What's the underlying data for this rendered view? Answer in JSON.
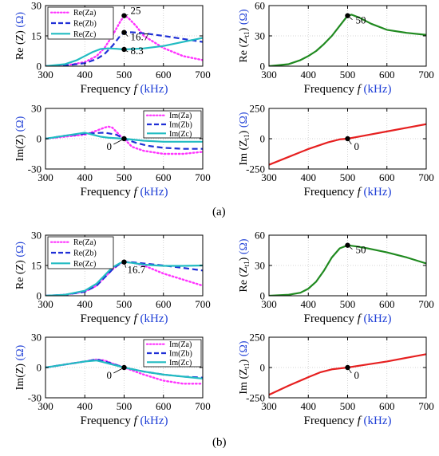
{
  "colors": {
    "Za": "#ff33ff",
    "Zb": "#1f2fd6",
    "Zc": "#22bcc2",
    "green": "#208a20",
    "red": "#e62020",
    "blue_text": "#1f3fd6",
    "axis": "#000000"
  },
  "panel_labels": [
    "(a)",
    "(b)"
  ],
  "text": {
    "x_axis_word": "Frequency",
    "x_axis_var": "f",
    "x_axis_unit": "(kHz)",
    "unit_ohm": "(Ω)",
    "ylabel_reZ": "Re (Z)",
    "ylabel_imZ": "Im(Z)",
    "ylabel_reZt_main": "Re (Z",
    "ylabel_imZt_main": "Im (Z",
    "ylabel_t_sub": "t1",
    "ylabel_t_close": ")"
  },
  "chart_data": [
    {
      "id": "a_reZ",
      "type": "line",
      "xlim": [
        300,
        700
      ],
      "ylim": [
        0,
        30
      ],
      "xticks": [
        300,
        400,
        500,
        600,
        700
      ],
      "yticks": [
        0,
        15,
        30
      ],
      "ylabel": "Re (Z)",
      "xlabel": "Frequency f (kHz)",
      "legend_position": "top-left",
      "series": [
        {
          "name": "Re(Za)",
          "style": "dotted",
          "color": "Za",
          "x": [
            300,
            350,
            400,
            430,
            450,
            470,
            490,
            500,
            510,
            530,
            550,
            600,
            650,
            700
          ],
          "y": [
            0,
            0.3,
            2,
            5,
            9,
            15,
            22,
            25,
            24,
            20,
            15,
            9,
            5,
            3
          ]
        },
        {
          "name": "Re(Zb)",
          "style": "dashed",
          "color": "Zb",
          "x": [
            300,
            350,
            400,
            430,
            450,
            470,
            490,
            500,
            520,
            550,
            600,
            650,
            700
          ],
          "y": [
            0,
            0.3,
            1.5,
            3.5,
            6,
            10,
            15,
            16.7,
            16.8,
            16.3,
            15,
            13.5,
            12
          ]
        },
        {
          "name": "Re(Zc)",
          "style": "solid",
          "color": "Zc",
          "x": [
            300,
            350,
            380,
            400,
            420,
            440,
            460,
            480,
            500,
            550,
            600,
            650,
            700
          ],
          "y": [
            0,
            1,
            3,
            5,
            7,
            8.5,
            8.8,
            8.6,
            8.3,
            8.8,
            10,
            12,
            14
          ]
        }
      ],
      "markers": [
        {
          "x": 500,
          "y": 25,
          "label": "25"
        },
        {
          "x": 500,
          "y": 16.7,
          "label": "16.7"
        },
        {
          "x": 500,
          "y": 8.3,
          "label": "8.3"
        }
      ]
    },
    {
      "id": "a_reZt",
      "type": "line",
      "xlim": [
        300,
        700
      ],
      "ylim": [
        0,
        60
      ],
      "xticks": [
        300,
        400,
        500,
        600,
        700
      ],
      "yticks": [
        0,
        30,
        60
      ],
      "ylabel": "Re (Zt1)",
      "xlabel": "Frequency f (kHz)",
      "series": [
        {
          "name": "",
          "style": "solid",
          "color": "green",
          "x": [
            300,
            350,
            380,
            400,
            420,
            440,
            460,
            480,
            500,
            510,
            530,
            560,
            600,
            650,
            700
          ],
          "y": [
            0,
            2,
            6,
            10,
            15,
            22,
            30,
            40,
            50,
            51,
            48,
            42,
            36,
            33,
            31
          ]
        }
      ],
      "markers": [
        {
          "x": 500,
          "y": 50,
          "label": "50"
        }
      ]
    },
    {
      "id": "a_imZ",
      "type": "line",
      "xlim": [
        300,
        700
      ],
      "ylim": [
        -30,
        30
      ],
      "xticks": [
        300,
        400,
        500,
        600,
        700
      ],
      "yticks": [
        -30,
        0,
        30
      ],
      "ylabel": "Im(Z)",
      "xlabel": "Frequency f (kHz)",
      "legend_position": "top-right",
      "series": [
        {
          "name": "Im(Za)",
          "style": "dotted",
          "color": "Za",
          "x": [
            300,
            350,
            400,
            430,
            450,
            460,
            470,
            480,
            490,
            500,
            520,
            550,
            600,
            650,
            700
          ],
          "y": [
            0,
            2,
            4,
            8,
            11,
            12,
            11,
            7,
            3,
            0,
            -8,
            -12,
            -15,
            -15,
            -13
          ]
        },
        {
          "name": "Im(Zb)",
          "style": "dashed",
          "color": "Zb",
          "x": [
            300,
            350,
            400,
            450,
            480,
            500,
            530,
            560,
            600,
            650,
            700
          ],
          "y": [
            0,
            3,
            5,
            6,
            4,
            0,
            -4,
            -7,
            -9,
            -10,
            -10
          ]
        },
        {
          "name": "Im(Zc)",
          "style": "solid",
          "color": "Zc",
          "x": [
            300,
            350,
            400,
            420,
            440,
            460,
            480,
            500,
            550,
            600,
            650,
            700
          ],
          "y": [
            0,
            3,
            6,
            4,
            2,
            1,
            0.5,
            0,
            -2,
            -3,
            -3,
            -3
          ]
        }
      ],
      "markers": [
        {
          "x": 500,
          "y": 0,
          "label": "0"
        }
      ]
    },
    {
      "id": "a_imZt",
      "type": "line",
      "xlim": [
        300,
        700
      ],
      "ylim": [
        -250,
        250
      ],
      "xticks": [
        300,
        400,
        500,
        600,
        700
      ],
      "yticks": [
        -250,
        0,
        250
      ],
      "ylabel": "Im (Zt1)",
      "xlabel": "Frequency f (kHz)",
      "series": [
        {
          "name": "",
          "style": "solid",
          "color": "red",
          "x": [
            300,
            350,
            400,
            450,
            480,
            500,
            550,
            600,
            650,
            700
          ],
          "y": [
            -215,
            -150,
            -85,
            -30,
            -5,
            0,
            30,
            60,
            90,
            120
          ]
        }
      ],
      "markers": [
        {
          "x": 500,
          "y": 0,
          "label": "0"
        }
      ]
    },
    {
      "id": "b_reZ",
      "type": "line",
      "xlim": [
        300,
        700
      ],
      "ylim": [
        0,
        30
      ],
      "xticks": [
        300,
        400,
        500,
        600,
        700
      ],
      "yticks": [
        0,
        15,
        30
      ],
      "ylabel": "Re (Z)",
      "xlabel": "Frequency f (kHz)",
      "legend_position": "top-left",
      "series": [
        {
          "name": "Re(Za)",
          "style": "dotted",
          "color": "Za",
          "x": [
            300,
            350,
            400,
            430,
            450,
            470,
            490,
            500,
            520,
            550,
            600,
            650,
            700
          ],
          "y": [
            0,
            0.5,
            2,
            5,
            9,
            13,
            16,
            16.7,
            16.5,
            15,
            11,
            8,
            5
          ]
        },
        {
          "name": "Re(Zb)",
          "style": "dashed",
          "color": "Zb",
          "x": [
            300,
            350,
            400,
            430,
            450,
            470,
            490,
            500,
            520,
            550,
            600,
            650,
            700
          ],
          "y": [
            0,
            0.5,
            2,
            5,
            9,
            13,
            16,
            16.7,
            16.6,
            16,
            15,
            13.8,
            12.5
          ]
        },
        {
          "name": "Re(Zc)",
          "style": "solid",
          "color": "Zc",
          "x": [
            300,
            350,
            400,
            430,
            450,
            470,
            490,
            500,
            520,
            550,
            600,
            650,
            700
          ],
          "y": [
            0,
            0.5,
            2.5,
            6,
            10,
            14,
            16.2,
            16.7,
            16.3,
            15.4,
            14.8,
            14.8,
            15
          ]
        }
      ],
      "markers": [
        {
          "x": 500,
          "y": 16.7,
          "label": "16.7"
        }
      ]
    },
    {
      "id": "b_reZt",
      "type": "line",
      "xlim": [
        300,
        700
      ],
      "ylim": [
        0,
        60
      ],
      "xticks": [
        300,
        400,
        500,
        600,
        700
      ],
      "yticks": [
        0,
        30,
        60
      ],
      "ylabel": "Re (Zt1)",
      "xlabel": "Frequency f (kHz)",
      "series": [
        {
          "name": "",
          "style": "solid",
          "color": "green",
          "x": [
            300,
            350,
            380,
            400,
            420,
            440,
            460,
            480,
            500,
            520,
            550,
            600,
            650,
            700
          ],
          "y": [
            0,
            1,
            3,
            7,
            14,
            25,
            38,
            47,
            50,
            49,
            47,
            43,
            38,
            32
          ]
        }
      ],
      "markers": [
        {
          "x": 500,
          "y": 50,
          "label": "50"
        }
      ]
    },
    {
      "id": "b_imZ",
      "type": "line",
      "xlim": [
        300,
        700
      ],
      "ylim": [
        -30,
        30
      ],
      "xticks": [
        300,
        400,
        500,
        600,
        700
      ],
      "yticks": [
        -30,
        0,
        30
      ],
      "ylabel": "Im(Z)",
      "xlabel": "Frequency f (kHz)",
      "legend_position": "top-right",
      "series": [
        {
          "name": "Im(Za)",
          "style": "dotted",
          "color": "Za",
          "x": [
            300,
            350,
            400,
            430,
            450,
            470,
            500,
            550,
            600,
            650,
            700
          ],
          "y": [
            0,
            3,
            6,
            8,
            7,
            4,
            0,
            -7,
            -13,
            -16,
            -16
          ]
        },
        {
          "name": "Im(Zb)",
          "style": "dashed",
          "color": "Zb",
          "x": [
            300,
            350,
            400,
            430,
            460,
            500,
            550,
            600,
            650,
            700
          ],
          "y": [
            0,
            3,
            6,
            8,
            5,
            0,
            -4,
            -7,
            -9,
            -10
          ]
        },
        {
          "name": "Im(Zc)",
          "style": "solid",
          "color": "Zc",
          "x": [
            300,
            350,
            400,
            430,
            460,
            500,
            550,
            600,
            650,
            700
          ],
          "y": [
            0,
            3,
            6,
            7,
            4,
            0,
            -4,
            -7,
            -9,
            -11
          ]
        }
      ],
      "markers": [
        {
          "x": 500,
          "y": 0,
          "label": "0"
        }
      ]
    },
    {
      "id": "b_imZt",
      "type": "line",
      "xlim": [
        300,
        700
      ],
      "ylim": [
        -250,
        250
      ],
      "xticks": [
        300,
        400,
        500,
        600,
        700
      ],
      "yticks": [
        -250,
        0,
        250
      ],
      "ylabel": "Im (Zt1)",
      "xlabel": "Frequency f (kHz)",
      "series": [
        {
          "name": "",
          "style": "solid",
          "color": "red",
          "x": [
            300,
            350,
            400,
            430,
            460,
            500,
            550,
            600,
            650,
            700
          ],
          "y": [
            -225,
            -150,
            -80,
            -40,
            -15,
            0,
            25,
            50,
            80,
            110
          ]
        }
      ],
      "markers": [
        {
          "x": 500,
          "y": 0,
          "label": "0"
        }
      ]
    }
  ]
}
